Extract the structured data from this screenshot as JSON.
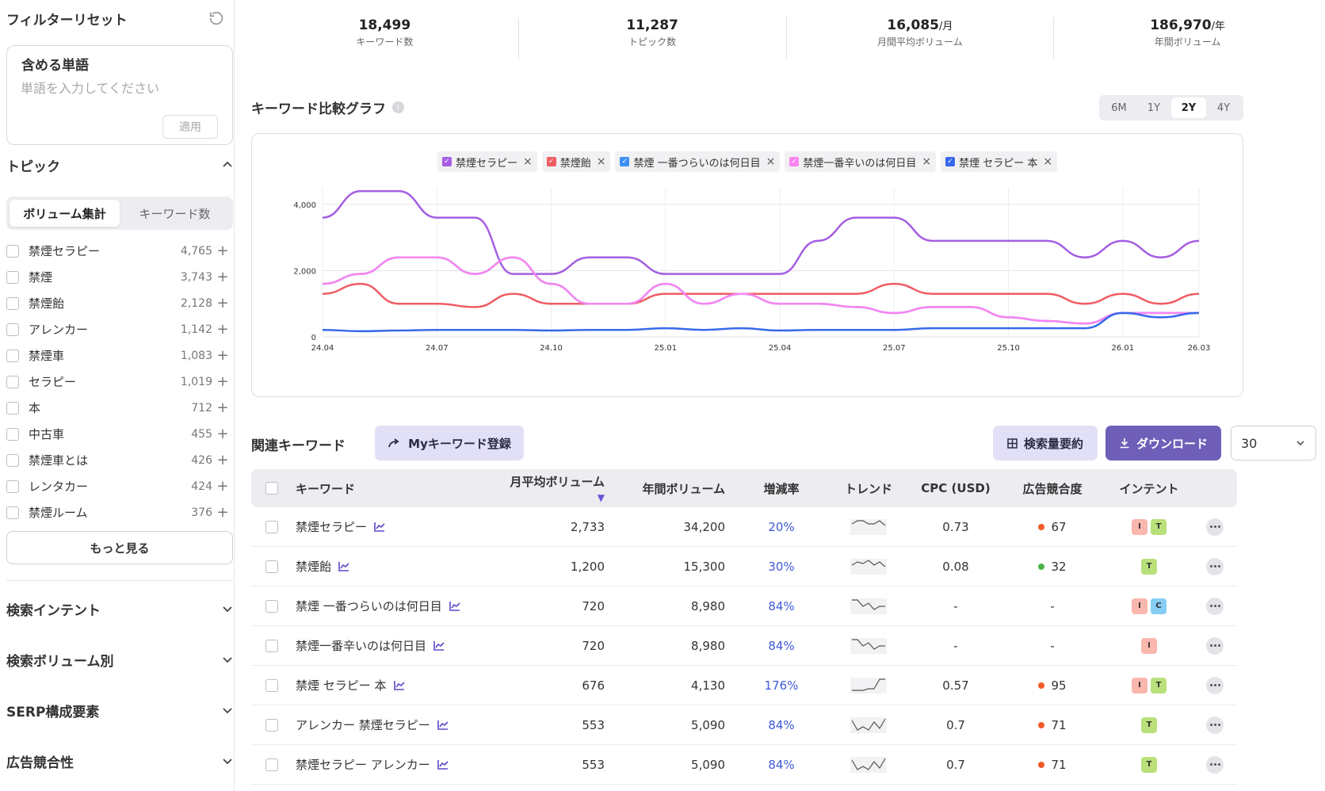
{
  "sidebar": {
    "reset_label": "フィルターリセット",
    "include": {
      "title": "含める単語",
      "placeholder": "単語を入力してください",
      "apply_label": "適用"
    },
    "topic_section_title": "トピック",
    "seg": [
      "ボリューム集計",
      "キーワード数"
    ],
    "topics": [
      {
        "name": "禁煙セラピー",
        "count": "4,765"
      },
      {
        "name": "禁煙",
        "count": "3,743"
      },
      {
        "name": "禁煙飴",
        "count": "2,128"
      },
      {
        "name": "アレンカー",
        "count": "1,142"
      },
      {
        "name": "禁煙車",
        "count": "1,083"
      },
      {
        "name": "セラピー",
        "count": "1,019"
      },
      {
        "name": "本",
        "count": "712"
      },
      {
        "name": "中古車",
        "count": "455"
      },
      {
        "name": "禁煙車とは",
        "count": "426"
      },
      {
        "name": "レンタカー",
        "count": "424"
      },
      {
        "name": "禁煙ルーム",
        "count": "376"
      }
    ],
    "more_label": "もっと見る",
    "sections": [
      "検索インテント",
      "検索ボリューム別",
      "SERP構成要素",
      "広告競合性"
    ]
  },
  "stats": [
    {
      "value": "18,499",
      "unit": "",
      "label": "キーワード数"
    },
    {
      "value": "11,287",
      "unit": "",
      "label": "トピック数"
    },
    {
      "value": "16,085",
      "unit": "/月",
      "label": "月間平均ボリューム"
    },
    {
      "value": "186,970",
      "unit": "/年",
      "label": "年間ボリューム"
    }
  ],
  "chart_title": "キーワード比較グラフ",
  "ranges": [
    "6M",
    "1Y",
    "2Y",
    "4Y"
  ],
  "active_range": "2Y",
  "chart_data": {
    "type": "line",
    "x": [
      "24.04",
      "24.05",
      "24.06",
      "24.07",
      "24.08",
      "24.09",
      "24.10",
      "24.11",
      "24.12",
      "25.01",
      "25.02",
      "25.03",
      "25.04",
      "25.05",
      "25.06",
      "25.07",
      "25.08",
      "25.09",
      "25.10",
      "25.11",
      "25.12",
      "26.01",
      "26.02",
      "26.03"
    ],
    "x_tick_labels": [
      "24.04",
      "24.07",
      "24.10",
      "25.01",
      "25.04",
      "25.07",
      "25.10",
      "26.01",
      "26.03"
    ],
    "y_ticks": [
      "0",
      "2,000",
      "4,000"
    ],
    "ylim": [
      0,
      4500
    ],
    "grid": true,
    "legend_position": "top-center",
    "series": [
      {
        "name": "禁煙セラピー",
        "color": "#a55ee3",
        "values": [
          3600,
          4400,
          4400,
          3600,
          3600,
          1900,
          1900,
          2400,
          2400,
          1900,
          1900,
          1900,
          1900,
          2900,
          3600,
          3600,
          2900,
          2900,
          2900,
          2900,
          2400,
          2900,
          2400,
          2900
        ]
      },
      {
        "name": "禁煙飴",
        "color": "#ef5c63",
        "values": [
          1300,
          1600,
          1000,
          1000,
          900,
          1300,
          1000,
          1000,
          1000,
          1300,
          1300,
          1300,
          1300,
          1300,
          1300,
          1600,
          1300,
          1300,
          1300,
          1300,
          1000,
          1300,
          1000,
          1300
        ]
      },
      {
        "name": "禁煙 一番つらいのは何日目",
        "color": "#3d8ff0",
        "values": [
          1600,
          1900,
          2400,
          2400,
          1900,
          2400,
          1600,
          1000,
          1000,
          1600,
          1000,
          1300,
          1000,
          1000,
          900,
          720,
          900,
          900,
          590,
          480,
          400,
          720,
          720,
          720
        ]
      },
      {
        "name": "禁煙一番辛いのは何日目",
        "color": "#fb84f0",
        "values": [
          1600,
          1900,
          2400,
          2400,
          1900,
          2400,
          1600,
          1000,
          1000,
          1600,
          1000,
          1300,
          1000,
          1000,
          900,
          720,
          900,
          900,
          590,
          480,
          400,
          720,
          720,
          720
        ]
      },
      {
        "name": "禁煙 セラピー 本",
        "color": "#3769ea",
        "values": [
          210,
          170,
          190,
          210,
          210,
          210,
          190,
          210,
          210,
          260,
          210,
          260,
          190,
          210,
          210,
          210,
          260,
          260,
          260,
          260,
          260,
          720,
          590,
          720
        ]
      }
    ]
  },
  "related": {
    "title": "関連キーワード",
    "my_btn": "Myキーワード登録",
    "summary_btn": "検索量要約",
    "download_btn": "ダウンロード",
    "page_size": "30",
    "headers": {
      "kw": "キーワード",
      "avg": "月平均ボリューム",
      "yr": "年間ボリューム",
      "gr": "増減率",
      "tr": "トレンド",
      "cpc": "CPC (USD)",
      "ad": "広告競合度",
      "int": "インテント"
    },
    "rows": [
      {
        "kw": "禁煙セラピー",
        "avg": "2,733",
        "yr": "34,200",
        "gr": "20%",
        "cpc": "0.73",
        "ad": "67",
        "ad_color": "#f05a2a",
        "intents": [
          "I",
          "T"
        ],
        "spark": [
          6,
          2,
          2,
          6,
          6,
          2,
          8
        ]
      },
      {
        "kw": "禁煙飴",
        "avg": "1,200",
        "yr": "15,300",
        "gr": "30%",
        "cpc": "0.08",
        "ad": "32",
        "ad_color": "#4bb54a",
        "intents": [
          "T"
        ],
        "spark": [
          8,
          4,
          6,
          2,
          8,
          4,
          10
        ]
      },
      {
        "kw": "禁煙 一番つらいのは何日目",
        "avg": "720",
        "yr": "8,980",
        "gr": "84%",
        "cpc": "-",
        "ad": "-",
        "ad_color": "",
        "intents": [
          "I",
          "C"
        ],
        "spark": [
          2,
          2,
          10,
          6,
          14,
          10,
          10
        ]
      },
      {
        "kw": "禁煙一番辛いのは何日目",
        "avg": "720",
        "yr": "8,980",
        "gr": "84%",
        "cpc": "-",
        "ad": "-",
        "ad_color": "",
        "intents": [
          "I"
        ],
        "spark": [
          2,
          2,
          10,
          6,
          14,
          10,
          10
        ]
      },
      {
        "kw": "禁煙 セラピー 本",
        "avg": "676",
        "yr": "4,130",
        "gr": "176%",
        "cpc": "0.57",
        "ad": "95",
        "ad_color": "#f05a2a",
        "intents": [
          "I",
          "T"
        ],
        "spark": [
          16,
          16,
          16,
          14,
          14,
          2,
          2
        ]
      },
      {
        "kw": "アレンカー 禁煙セラピー",
        "avg": "553",
        "yr": "5,090",
        "gr": "84%",
        "cpc": "0.7",
        "ad": "71",
        "ad_color": "#f05a2a",
        "intents": [
          "T"
        ],
        "spark": [
          4,
          16,
          12,
          16,
          6,
          14,
          2
        ]
      },
      {
        "kw": "禁煙セラピー アレンカー",
        "avg": "553",
        "yr": "5,090",
        "gr": "84%",
        "cpc": "0.7",
        "ad": "71",
        "ad_color": "#f05a2a",
        "intents": [
          "T"
        ],
        "spark": [
          4,
          16,
          12,
          16,
          6,
          14,
          2
        ]
      }
    ]
  },
  "intent_colors": {
    "I": "#f9b7ae",
    "T": "#b9e07a",
    "C": "#87cdf5"
  }
}
